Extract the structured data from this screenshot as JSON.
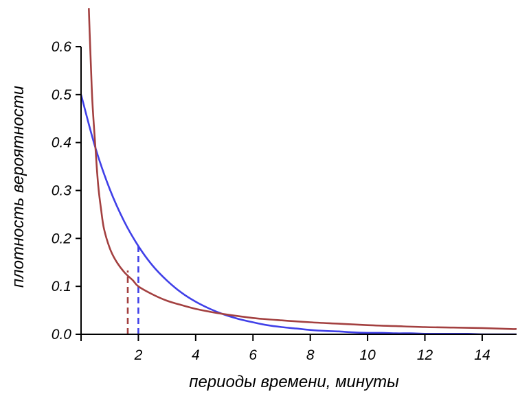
{
  "chart_data": {
    "type": "line",
    "title": "",
    "xlabel": "периоды времени, минуты",
    "ylabel": "плотность вероятности",
    "xlim": [
      0,
      15.2
    ],
    "ylim": [
      0,
      0.68
    ],
    "x_ticks": [
      0,
      2,
      4,
      6,
      8,
      10,
      12,
      14
    ],
    "x_tick_labels": [
      "",
      "2",
      "4",
      "6",
      "8",
      "10",
      "12",
      "14"
    ],
    "y_ticks": [
      0,
      0.1,
      0.2,
      0.3,
      0.4,
      0.5,
      0.6
    ],
    "y_tick_labels": [
      "0.0",
      "0.1",
      "0.2",
      "0.3",
      "0.4",
      "0.5",
      "0.6"
    ],
    "grid": false,
    "legend": "none",
    "series": [
      {
        "color": "#4040e8",
        "x": [
          0,
          0.5,
          1,
          1.5,
          2,
          2.5,
          3,
          3.5,
          4,
          4.5,
          5,
          5.5,
          6,
          6.5,
          7,
          7.5,
          8,
          8.5,
          9,
          9.5,
          10,
          10.5,
          11,
          11.5,
          12,
          12.5,
          13,
          13.5,
          14,
          14.5,
          15,
          15.2
        ],
        "y": [
          0.5,
          0.389,
          0.303,
          0.236,
          0.184,
          0.143,
          0.112,
          0.087,
          0.068,
          0.053,
          0.041,
          0.032,
          0.025,
          0.019,
          0.015,
          0.012,
          0.009,
          0.007,
          0.006,
          0.004,
          0.003,
          0.003,
          0.002,
          0.002,
          0.001,
          0.001,
          0.001,
          0.001,
          0.0,
          0.0,
          0.0,
          0.0
        ]
      },
      {
        "color": "#a34040",
        "x": [
          0.27,
          0.3,
          0.35,
          0.4,
          0.5,
          0.6,
          0.7,
          0.8,
          1,
          1.2,
          1.5,
          1.8,
          2,
          2.5,
          3,
          3.5,
          4,
          4.5,
          5,
          6,
          7,
          8,
          9,
          10,
          11,
          12,
          13,
          14,
          15,
          15.2
        ],
        "y": [
          0.68,
          0.63,
          0.55,
          0.48,
          0.39,
          0.31,
          0.26,
          0.22,
          0.18,
          0.155,
          0.13,
          0.113,
          0.1,
          0.083,
          0.07,
          0.061,
          0.053,
          0.047,
          0.042,
          0.034,
          0.029,
          0.025,
          0.022,
          0.019,
          0.017,
          0.015,
          0.014,
          0.013,
          0.011,
          0.011
        ]
      }
    ],
    "markers": [
      {
        "x": 1.63,
        "y": 0.133,
        "color": "#a34040",
        "style": "dashed"
      },
      {
        "x": 2.0,
        "y": 0.184,
        "color": "#4040e8",
        "style": "dashed"
      }
    ]
  }
}
